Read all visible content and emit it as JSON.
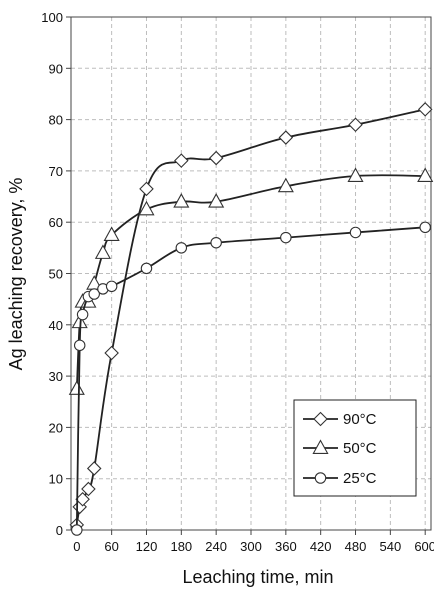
{
  "chart_data": {
    "type": "line",
    "xlabel": "Leaching time, min",
    "ylabel": "Ag leaching recovery, %",
    "xlim": [
      -10,
      610
    ],
    "ylim": [
      0,
      100
    ],
    "xticks": [
      0,
      60,
      120,
      180,
      240,
      300,
      360,
      420,
      480,
      540,
      600
    ],
    "yticks": [
      0,
      10,
      20,
      30,
      40,
      50,
      60,
      70,
      80,
      90,
      100
    ],
    "grid": true,
    "legend_position": "bottom-right",
    "series": [
      {
        "name": "90°C",
        "marker": "diamond",
        "x": [
          0,
          5,
          10,
          20,
          30,
          60,
          120,
          180,
          240,
          360,
          480,
          600
        ],
        "y": [
          1,
          4.5,
          6,
          8,
          12,
          34.5,
          66.5,
          72,
          72.5,
          76.5,
          79,
          82
        ]
      },
      {
        "name": "50°C",
        "marker": "triangle",
        "x": [
          0,
          5,
          10,
          20,
          30,
          45,
          60,
          120,
          180,
          240,
          360,
          480,
          600
        ],
        "y": [
          27.5,
          40.5,
          44.5,
          44.5,
          48,
          54,
          57.5,
          62.5,
          64,
          64,
          67,
          69,
          69
        ]
      },
      {
        "name": "25°C",
        "marker": "circle",
        "x": [
          0,
          5,
          10,
          20,
          30,
          45,
          60,
          120,
          180,
          240,
          360,
          480,
          600
        ],
        "y": [
          0,
          36,
          42,
          45.5,
          46,
          47,
          47.5,
          51,
          55,
          56,
          57,
          58,
          59
        ]
      }
    ]
  }
}
